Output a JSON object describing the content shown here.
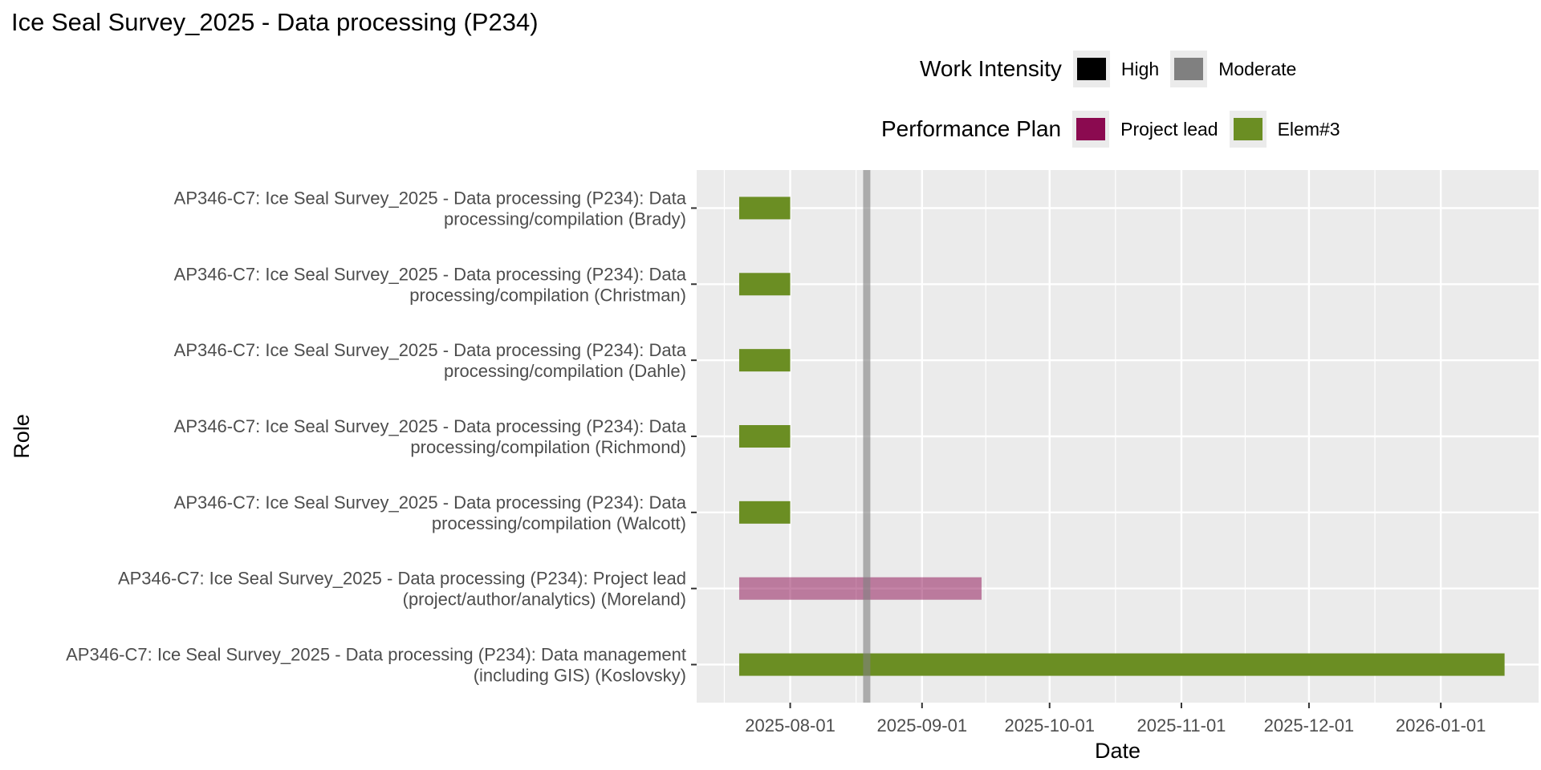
{
  "title": "Ice Seal Survey_2025 - Data processing (P234)",
  "legends": {
    "intensity": {
      "title": "Work Intensity",
      "items": [
        {
          "label": "High",
          "color": "#000000"
        },
        {
          "label": "Moderate",
          "color": "#808080"
        }
      ]
    },
    "plan": {
      "title": "Performance Plan",
      "items": [
        {
          "label": "Project lead",
          "color": "#8B0A50"
        },
        {
          "label": "Elem#3",
          "color": "#6B8E23"
        }
      ]
    }
  },
  "chart_data": {
    "type": "gantt",
    "xlabel": "Date",
    "ylabel": "Role",
    "x_scale": "date",
    "xlim": [
      "2025-07-10",
      "2026-01-24"
    ],
    "x_ticks": [
      "2025-08-01",
      "2025-09-01",
      "2025-10-01",
      "2025-11-01",
      "2025-12-01",
      "2026-01-01"
    ],
    "grid": true,
    "legend_position": "top",
    "reference_line": {
      "date": "2025-08-19",
      "intensity": "Moderate"
    },
    "tasks": [
      {
        "role": "AP346-C7: Ice Seal Survey_2025 - Data processing (P234): Data processing/compilation (Brady)",
        "label_lines": [
          "AP346-C7: Ice Seal Survey_2025 - Data processing (P234): Data",
          "processing/compilation (Brady)"
        ],
        "start": "2025-07-20",
        "end": "2025-08-01",
        "plan": "Elem#3",
        "intensity": "High"
      },
      {
        "role": "AP346-C7: Ice Seal Survey_2025 - Data processing (P234): Data processing/compilation (Christman)",
        "label_lines": [
          "AP346-C7: Ice Seal Survey_2025 - Data processing (P234): Data",
          "processing/compilation (Christman)"
        ],
        "start": "2025-07-20",
        "end": "2025-08-01",
        "plan": "Elem#3",
        "intensity": "High"
      },
      {
        "role": "AP346-C7: Ice Seal Survey_2025 - Data processing (P234): Data processing/compilation (Dahle)",
        "label_lines": [
          "AP346-C7: Ice Seal Survey_2025 - Data processing (P234): Data",
          "processing/compilation (Dahle)"
        ],
        "start": "2025-07-20",
        "end": "2025-08-01",
        "plan": "Elem#3",
        "intensity": "High"
      },
      {
        "role": "AP346-C7: Ice Seal Survey_2025 - Data processing (P234): Data processing/compilation (Richmond)",
        "label_lines": [
          "AP346-C7: Ice Seal Survey_2025 - Data processing (P234): Data",
          "processing/compilation (Richmond)"
        ],
        "start": "2025-07-20",
        "end": "2025-08-01",
        "plan": "Elem#3",
        "intensity": "High"
      },
      {
        "role": "AP346-C7: Ice Seal Survey_2025 - Data processing (P234): Data processing/compilation (Walcott)",
        "label_lines": [
          "AP346-C7: Ice Seal Survey_2025 - Data processing (P234): Data",
          "processing/compilation (Walcott)"
        ],
        "start": "2025-07-20",
        "end": "2025-08-01",
        "plan": "Elem#3",
        "intensity": "High"
      },
      {
        "role": "AP346-C7: Ice Seal Survey_2025 - Data processing (P234): Project lead (project/author/analytics) (Moreland)",
        "label_lines": [
          "AP346-C7: Ice Seal Survey_2025 - Data processing (P234): Project lead",
          "(project/author/analytics) (Moreland)"
        ],
        "start": "2025-07-20",
        "end": "2025-09-15",
        "plan": "Project lead",
        "intensity": "Moderate"
      },
      {
        "role": "AP346-C7: Ice Seal Survey_2025 - Data processing (P234): Data management (including GIS) (Koslovsky)",
        "label_lines": [
          "AP346-C7: Ice Seal Survey_2025 - Data processing (P234): Data management",
          "(including GIS) (Koslovsky)"
        ],
        "start": "2025-07-20",
        "end": "2026-01-16",
        "plan": "Elem#3",
        "intensity": "High"
      }
    ]
  }
}
